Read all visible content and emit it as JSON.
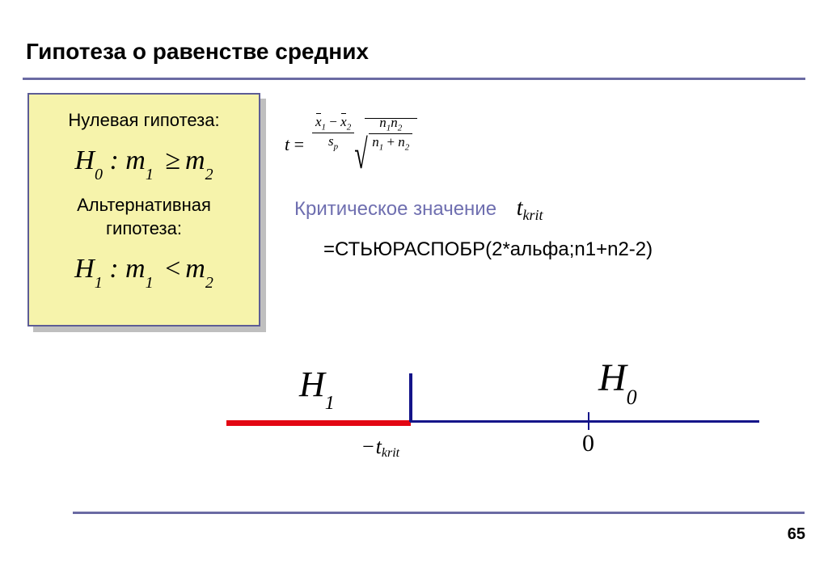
{
  "title": "Гипотеза о равенстве средних",
  "null_hypothesis_label": "Нулевая гипотеза:",
  "alt_hypothesis_label_l1": "Альтернативная",
  "alt_hypothesis_label_l2": "гипотеза:",
  "h0_sym": "H",
  "h0_sub": "0",
  "h1_sym": "H",
  "h1_sub": "1",
  "m1_sym": "m",
  "m1_sub": "1",
  "m2_sym": "m",
  "m2_sub": "2",
  "ge_sym": "≥",
  "lt_sym": "<",
  "colon": " : ",
  "tstat": {
    "t": "t",
    "eq": " = ",
    "x1": "x",
    "x1_sub": "1",
    "x2": "x",
    "x2_sub": "2",
    "minus": " − ",
    "sp_s": "s",
    "sp_p": "p",
    "n": "n",
    "n1_sub": "1",
    "n2_sub": "2",
    "plus": " + "
  },
  "critical": {
    "label": "Критическое значение",
    "t": "t",
    "sub": "krit"
  },
  "function_line": "=СТЬЮРАСПОБР(2*альфа;n1+n2-2)",
  "diagram": {
    "h1": "H",
    "h1_sub": "1",
    "h0": "H",
    "h0_sub": "0",
    "zero": "0",
    "neg_t": "t",
    "neg_t_sub": "krit",
    "minus": "−",
    "colors": {
      "axis_blue": "#141489",
      "rejection_red": "#e30613"
    }
  },
  "page_number": "65",
  "colors": {
    "rule": "#6a6aa3",
    "box_bg": "#f6f3ab",
    "box_border": "#5c5c95",
    "shadow": "#bfbfbf",
    "crit_label": "#6f6fb0"
  }
}
